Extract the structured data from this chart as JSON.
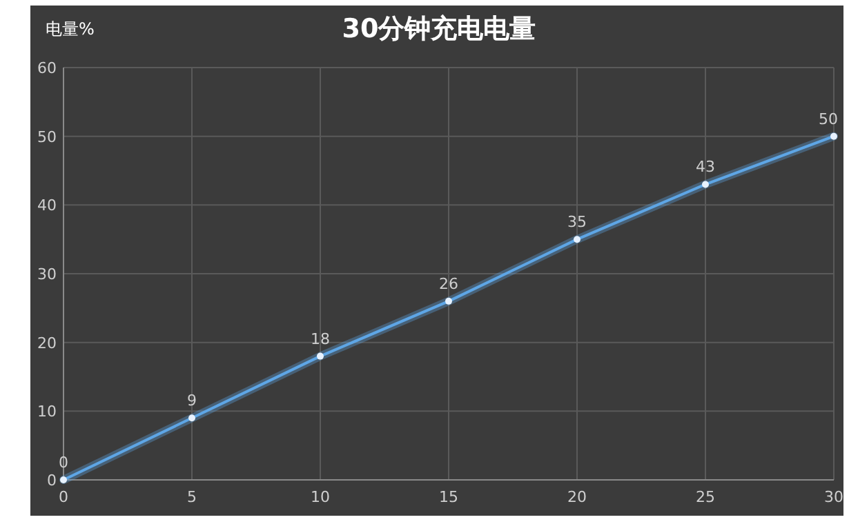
{
  "chart_data": {
    "type": "line",
    "title": "30分钟充电电量",
    "ylabel": "电量%",
    "x": [
      0,
      5,
      10,
      15,
      20,
      25,
      30
    ],
    "series": [
      {
        "color": "#5ea6e6",
        "values": [
          0,
          9,
          18,
          26,
          35,
          43,
          50
        ]
      }
    ],
    "xlim": [
      0,
      30
    ],
    "xticks": [
      0,
      5,
      10,
      15,
      20,
      25,
      30
    ],
    "ylim": [
      0,
      60
    ],
    "yticks": [
      0,
      10,
      20,
      30,
      40,
      50,
      60
    ],
    "grid": true,
    "marker": "circle",
    "line_style": "solid",
    "data_labels": true
  }
}
